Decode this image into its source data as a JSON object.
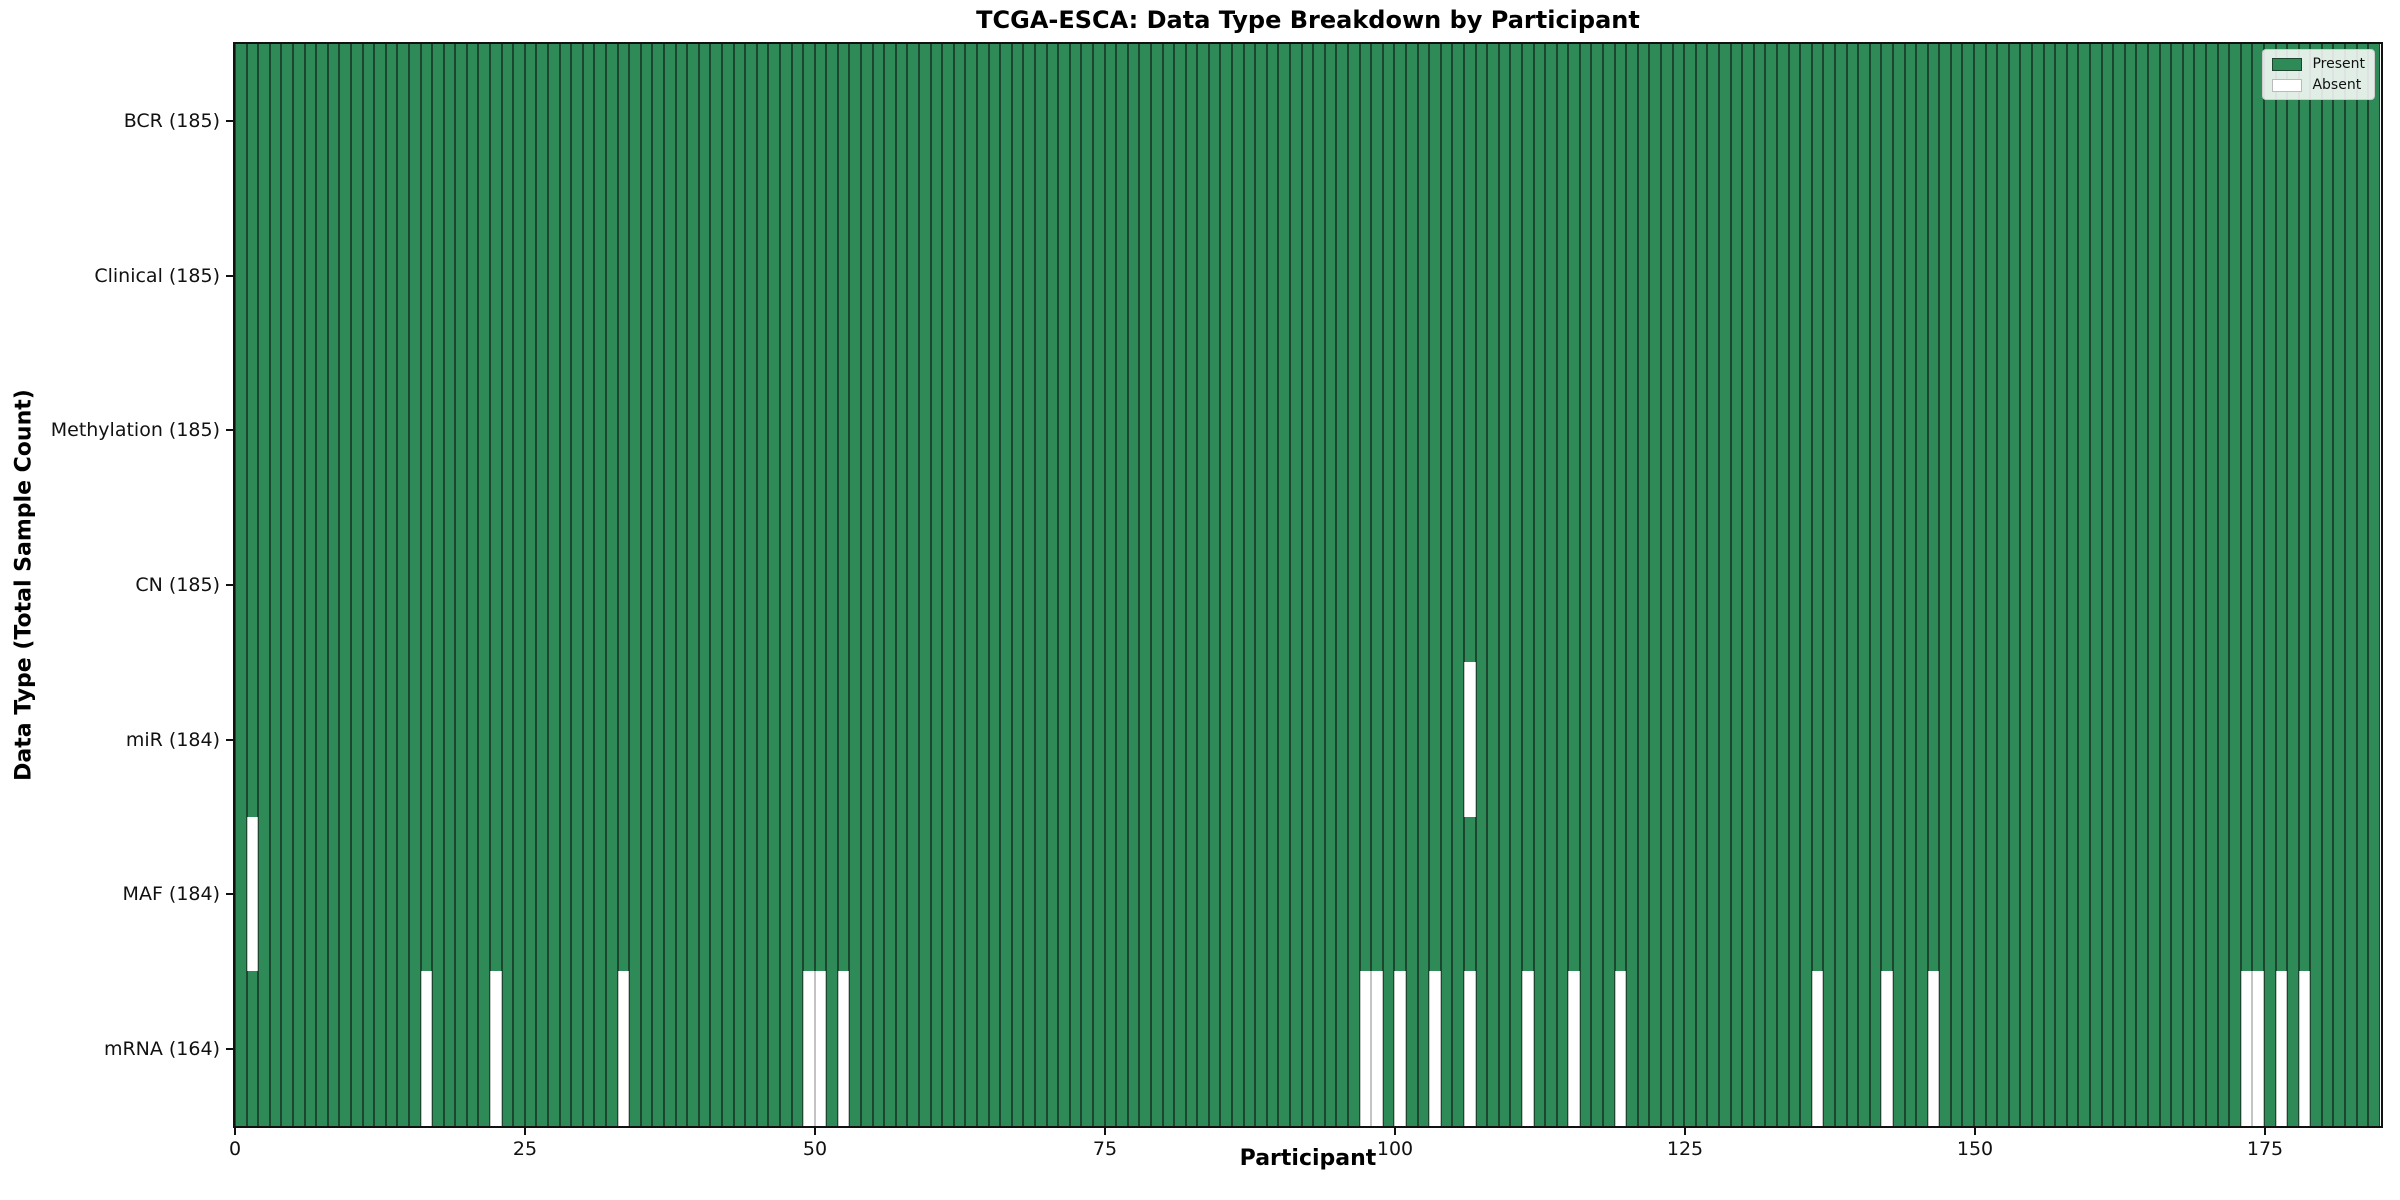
{
  "chart_data": {
    "type": "heatmap",
    "title": "TCGA-ESCA: Data Type Breakdown by Participant",
    "xlabel": "Participant",
    "ylabel": "Data Type (Total Sample Count)",
    "n_participants": 185,
    "xlim": [
      0,
      185
    ],
    "x_ticks": [
      0,
      25,
      50,
      75,
      100,
      125,
      150,
      175
    ],
    "grid": false,
    "legend": {
      "present": "Present",
      "absent": "Absent",
      "position": "upper right"
    },
    "colors": {
      "present": "#2e8b57",
      "absent": "#ffffff",
      "cell_edge": "#1d4630",
      "absent_edge": "#c4c4c4",
      "axis": "#111111"
    },
    "rows": [
      {
        "label": "BCR (185)",
        "data_type": "BCR",
        "present_count": 185,
        "absent_participants": []
      },
      {
        "label": "Clinical (185)",
        "data_type": "Clinical",
        "present_count": 185,
        "absent_participants": []
      },
      {
        "label": "Methylation (185)",
        "data_type": "Methylation",
        "present_count": 185,
        "absent_participants": []
      },
      {
        "label": "CN (185)",
        "data_type": "CN",
        "present_count": 185,
        "absent_participants": []
      },
      {
        "label": "miR (184)",
        "data_type": "miR",
        "present_count": 184,
        "absent_participants": [
          106
        ]
      },
      {
        "label": "MAF (184)",
        "data_type": "MAF",
        "present_count": 184,
        "absent_participants": [
          1
        ]
      },
      {
        "label": "mRNA (164)",
        "data_type": "mRNA",
        "present_count": 164,
        "absent_participants": [
          16,
          22,
          33,
          49,
          50,
          52,
          97,
          98,
          100,
          103,
          106,
          111,
          115,
          119,
          136,
          142,
          146,
          173,
          174,
          176,
          178
        ]
      }
    ]
  }
}
